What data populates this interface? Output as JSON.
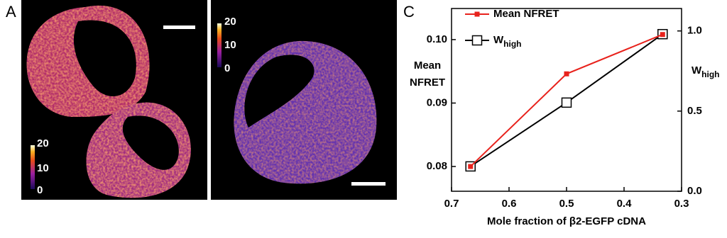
{
  "panel_labels": {
    "a": "A",
    "c": "C"
  },
  "colorbars": [
    {
      "ticks": [
        "20",
        "10",
        "0"
      ]
    },
    {
      "ticks": [
        "20",
        "10",
        "0"
      ]
    }
  ],
  "chart_data": {
    "type": "line",
    "xlabel": "Mole fraction of β2-EGFP cDNA",
    "ylabel": [
      "Mean",
      "NFRET"
    ],
    "y2label": "W",
    "y2label_subscript": "high",
    "xlim": [
      0.7,
      0.3
    ],
    "xticks": [
      0.7,
      0.6,
      0.5,
      0.4,
      0.3
    ],
    "ylim": [
      0.0761,
      0.1049
    ],
    "yticks": [
      0.08,
      0.09,
      {
        "value": 0.1,
        "label": "0.10"
      }
    ],
    "y2lim": [
      0,
      1.14
    ],
    "y2ticks": [
      {
        "value": 0,
        "label": "0.0"
      },
      0.5,
      {
        "value": 1.0,
        "label": "1.0"
      }
    ],
    "x": [
      0.667,
      0.5,
      0.333
    ],
    "series": [
      {
        "name": "W",
        "name_subscript": "high",
        "color": "#000000",
        "marker": "open-square",
        "axis": "y2",
        "values": [
          0.155,
          0.553,
          0.98
        ]
      },
      {
        "name": "Mean NFRET",
        "color": "#e8221c",
        "marker": "filled-square",
        "values": [
          0.08,
          0.0946,
          0.1008
        ]
      }
    ]
  }
}
